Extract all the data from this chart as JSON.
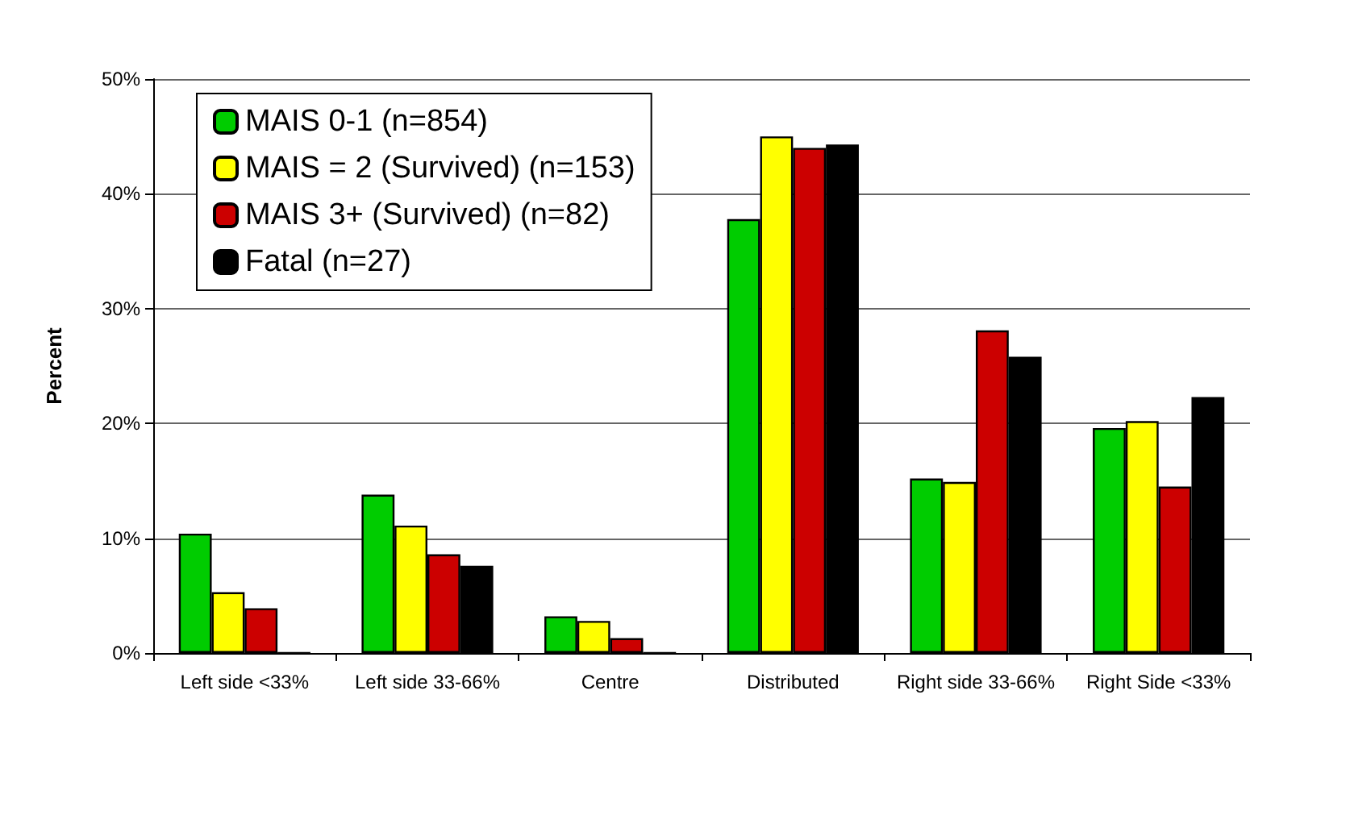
{
  "chart_data": {
    "type": "bar",
    "ylabel": "Percent",
    "categories": [
      "Left side <33%",
      "Left side 33-66%",
      "Centre",
      "Distributed",
      "Right side 33-66%",
      "Right Side <33%"
    ],
    "series": [
      {
        "name": "MAIS 0-1 (n=854)",
        "color": "#00cc00",
        "values": [
          10.4,
          13.8,
          3.2,
          37.8,
          15.2,
          19.6
        ]
      },
      {
        "name": "MAIS = 2 (Survived) (n=153)",
        "color": "#ffff00",
        "values": [
          5.3,
          11.1,
          2.8,
          45.0,
          14.9,
          20.2
        ]
      },
      {
        "name": "MAIS 3+ (Survived) (n=82)",
        "color": "#cc0000",
        "values": [
          3.9,
          8.6,
          1.3,
          44.0,
          28.1,
          14.5
        ]
      },
      {
        "name": "Fatal (n=27)",
        "color": "#000000",
        "values": [
          0,
          7.6,
          0,
          44.3,
          25.8,
          22.3
        ]
      }
    ],
    "ylim": [
      0,
      50
    ],
    "yticks": [
      {
        "value": 0,
        "label": "0%"
      },
      {
        "value": 10,
        "label": "10%"
      },
      {
        "value": 20,
        "label": "20%"
      },
      {
        "value": 30,
        "label": "30%"
      },
      {
        "value": 40,
        "label": "40%"
      },
      {
        "value": 50,
        "label": "50%"
      }
    ],
    "grid": "y",
    "legend": "top left"
  }
}
